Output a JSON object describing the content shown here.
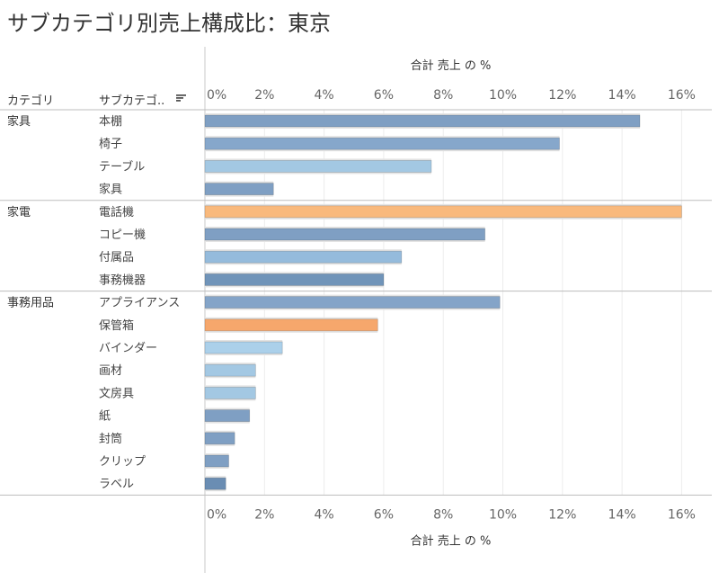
{
  "title": "サブカテゴリ別売上構成比：東京",
  "chart_data": {
    "type": "bar",
    "orientation": "horizontal",
    "title": "サブカテゴリ別売上構成比：東京",
    "axis_title": "合計 売上 の %",
    "row_headers": {
      "category": "カテゴリ",
      "subcategory": "サブカテゴ.."
    },
    "sort_icon": "sort-descending-icon",
    "xlim": [
      0,
      16.5
    ],
    "ticks": [
      "0%",
      "2%",
      "4%",
      "6%",
      "8%",
      "10%",
      "12%",
      "14%",
      "16%"
    ],
    "tick_values": [
      0,
      2,
      4,
      6,
      8,
      10,
      12,
      14,
      16
    ],
    "groups": [
      {
        "category": "家具",
        "items": [
          {
            "name": "本棚",
            "value": 14.6,
            "color": "#7f9fc3"
          },
          {
            "name": "椅子",
            "value": 11.9,
            "color": "#86a7cb"
          },
          {
            "name": "テーブル",
            "value": 7.6,
            "color": "#a3c8e3"
          },
          {
            "name": "家具",
            "value": 2.3,
            "color": "#7f9fc3"
          }
        ]
      },
      {
        "category": "家電",
        "items": [
          {
            "name": "電話機",
            "value": 16.0,
            "color": "#f9b97c"
          },
          {
            "name": "コピー機",
            "value": 9.4,
            "color": "#7f9fc3"
          },
          {
            "name": "付属品",
            "value": 6.6,
            "color": "#95bbdc"
          },
          {
            "name": "事務機器",
            "value": 6.0,
            "color": "#7094b9"
          }
        ]
      },
      {
        "category": "事務用品",
        "items": [
          {
            "name": "アプライアンス",
            "value": 9.9,
            "color": "#84a4c8"
          },
          {
            "name": "保管箱",
            "value": 5.8,
            "color": "#f6a76c"
          },
          {
            "name": "バインダー",
            "value": 2.6,
            "color": "#abd0ea"
          },
          {
            "name": "画材",
            "value": 1.7,
            "color": "#a3c8e3"
          },
          {
            "name": "文房具",
            "value": 1.7,
            "color": "#a3c8e3"
          },
          {
            "name": "紙",
            "value": 1.5,
            "color": "#7f9fc3"
          },
          {
            "name": "封筒",
            "value": 1.0,
            "color": "#7f9fc3"
          },
          {
            "name": "クリップ",
            "value": 0.8,
            "color": "#7f9fc3"
          },
          {
            "name": "ラベル",
            "value": 0.7,
            "color": "#6a8db3"
          }
        ]
      }
    ]
  }
}
